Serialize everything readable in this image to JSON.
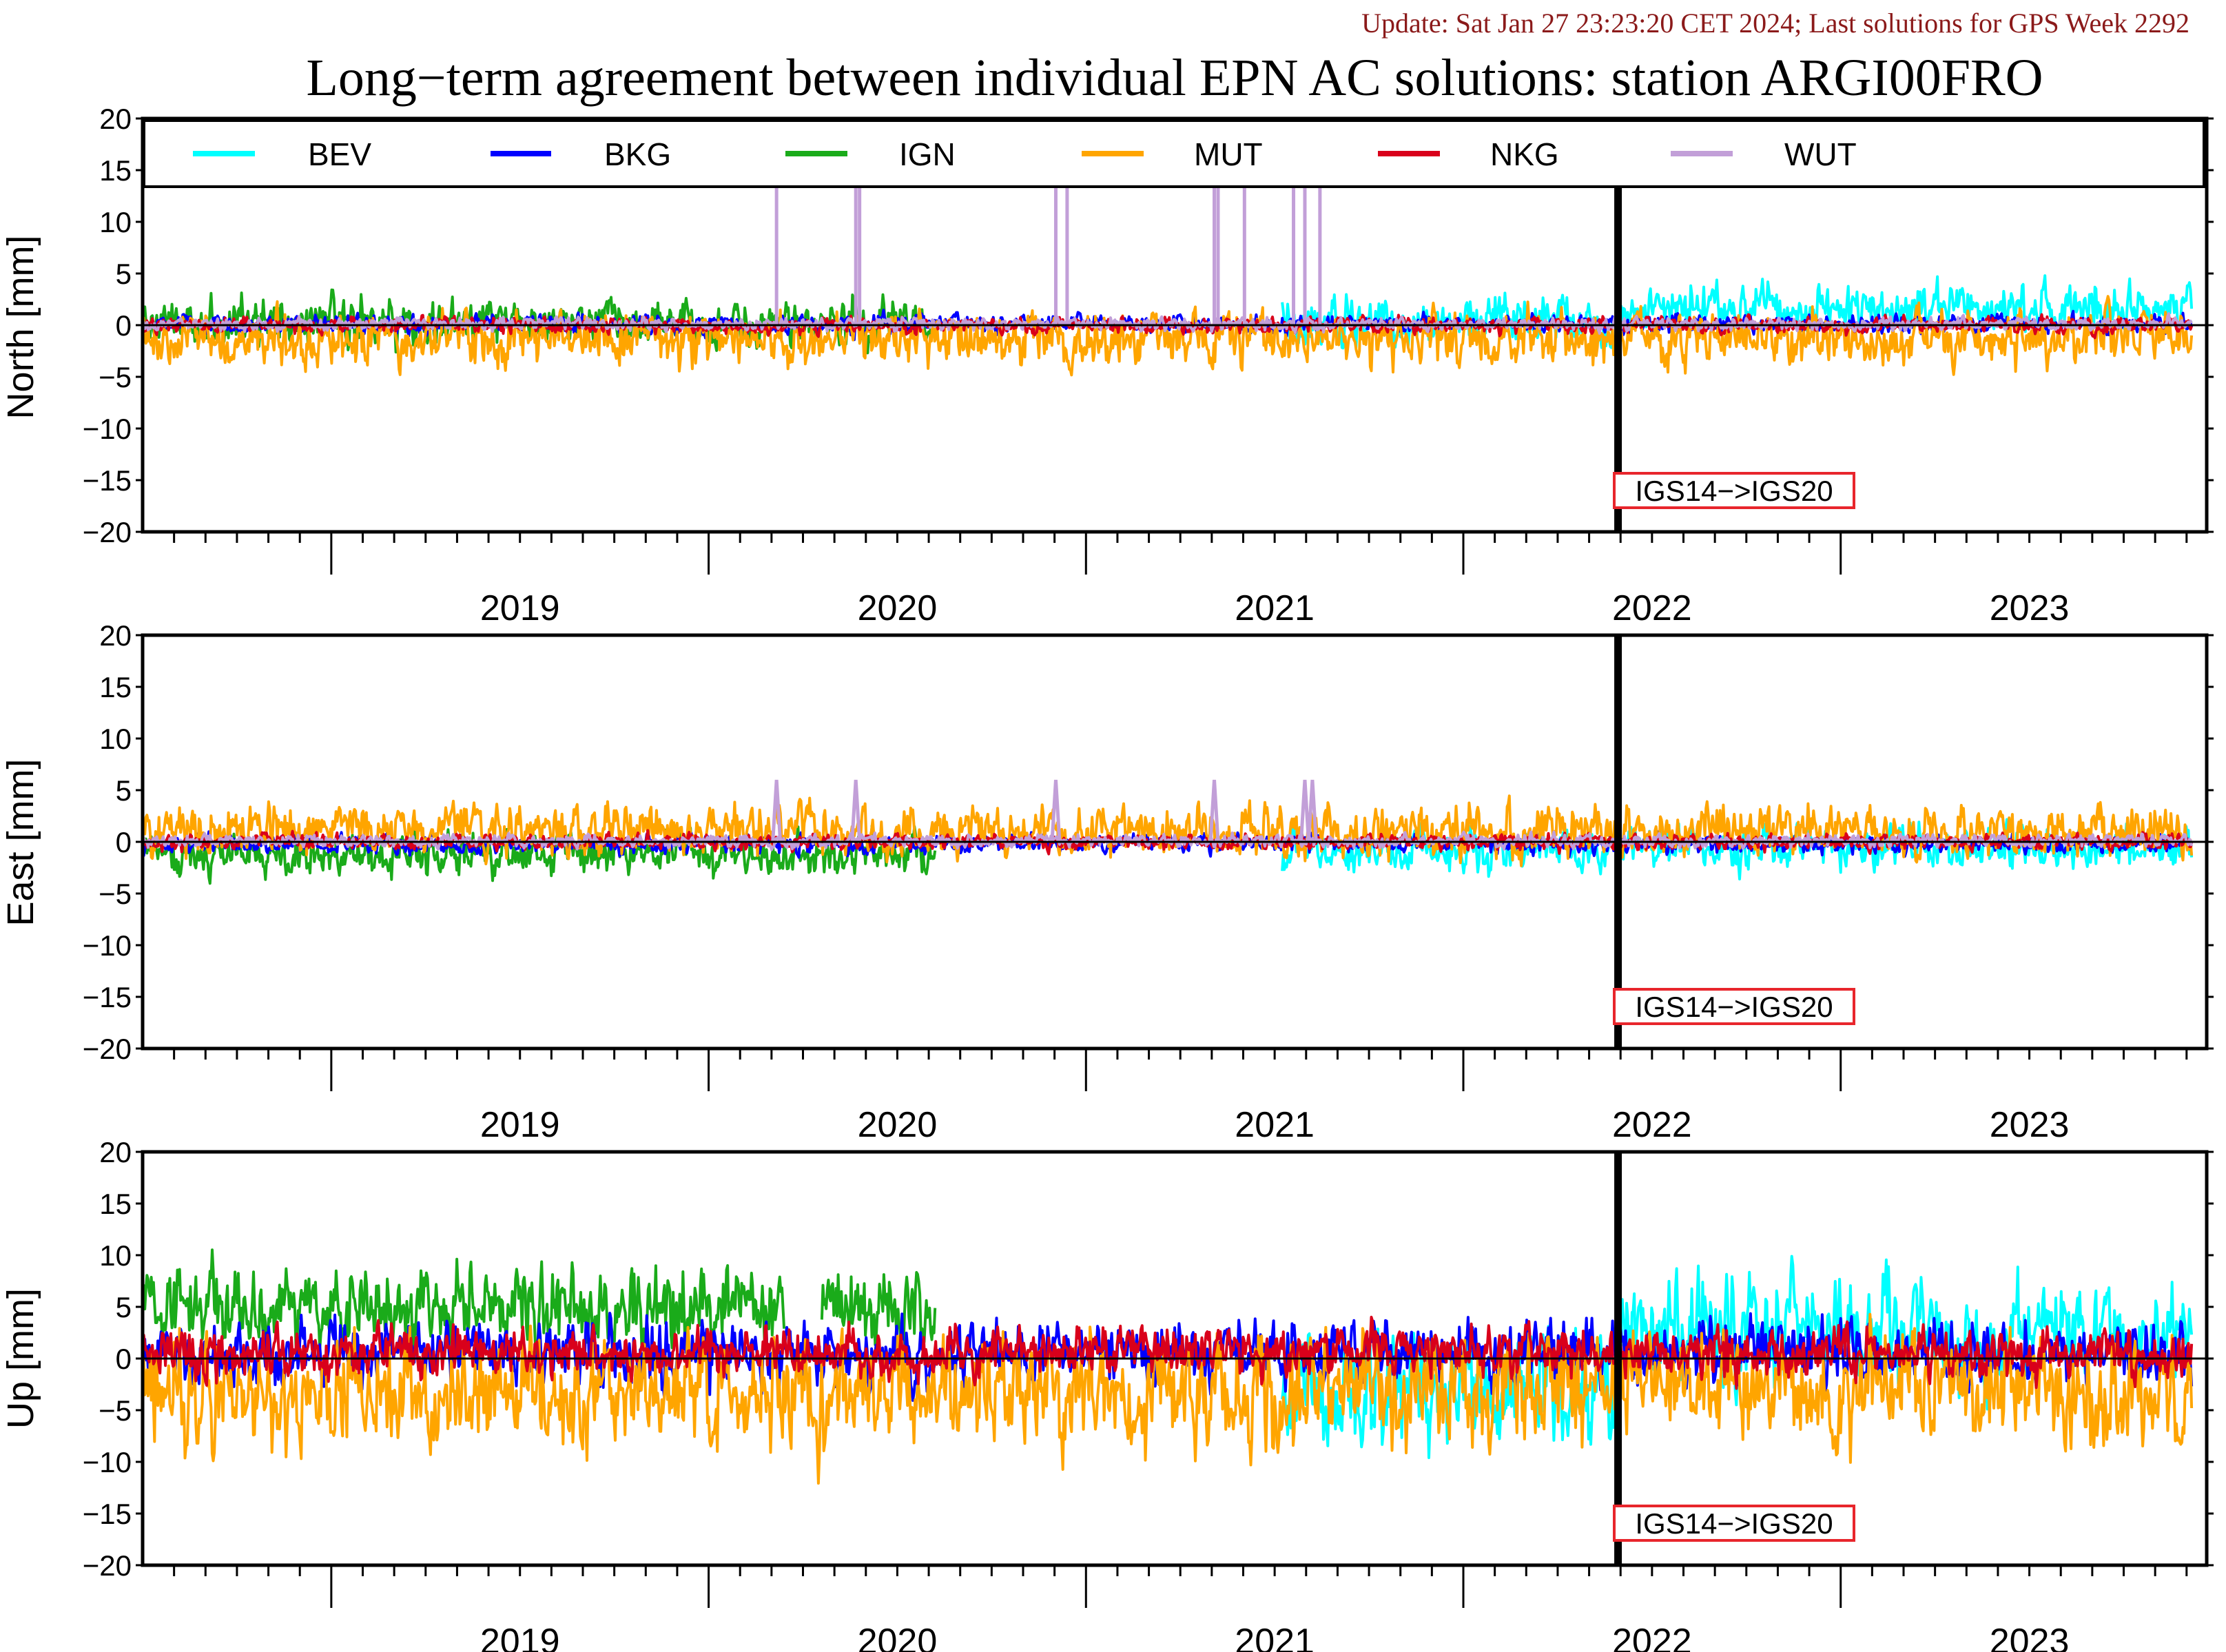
{
  "header": {
    "update": "Update: Sat Jan 27 23:23:20 CET 2024; Last solutions for GPS Week 2292",
    "title": "Long−term agreement between individual EPN AC solutions: station ARGI00FRO"
  },
  "colors": {
    "BEV": "#00ffff",
    "BKG": "#0000ff",
    "IGN": "#1aab1a",
    "MUT": "#ffa500",
    "NKG": "#d9001b",
    "WUT": "#c29fd8",
    "update_text": "#8b1a1a",
    "frame_box": "#e8262c"
  },
  "chart_data": [
    {
      "type": "line",
      "ylabel": "North [mm]",
      "ylim": [
        -20,
        20
      ],
      "yticks": [
        "20",
        "15",
        "10",
        "5",
        "0",
        "−5",
        "−10",
        "−15",
        "−20"
      ],
      "xlim": [
        2018.5,
        2023.97
      ],
      "xticks": [
        "2019",
        "2020",
        "2021",
        "2022",
        "2023"
      ],
      "legend": [
        "BEV",
        "BKG",
        "IGN",
        "MUT",
        "NKG",
        "WUT"
      ],
      "legend_position": "top",
      "reference_frame_change": {
        "x": 2022.41,
        "label": "IGS14−>IGS20"
      },
      "series": [
        {
          "name": "BEV",
          "ranges": [
            [
              2021.52,
              2023.93
            ]
          ],
          "amp": 1.6,
          "bias": 0.4,
          "late_bias": 1.5,
          "late_from": 2022.41
        },
        {
          "name": "BKG",
          "ranges": [
            [
              2018.5,
              2023.93
            ]
          ],
          "amp": 0.6,
          "bias": 0.1
        },
        {
          "name": "IGN",
          "ranges": [
            [
              2018.5,
              2020.6
            ]
          ],
          "amp": 1.6,
          "bias": 0.2
        },
        {
          "name": "MUT",
          "ranges": [
            [
              2018.5,
              2023.93
            ]
          ],
          "amp": 1.7,
          "bias": -1.3
        },
        {
          "name": "NKG",
          "ranges": [
            [
              2018.5,
              2023.93
            ]
          ],
          "amp": 0.5,
          "bias": 0.0
        },
        {
          "name": "WUT",
          "ranges": [
            [
              2018.5,
              2023.93
            ]
          ],
          "amp": 0.4,
          "bias": 0.1,
          "spikes": [
            2020.18,
            2020.39,
            2020.4,
            2020.92,
            2020.95,
            2021.34,
            2021.35,
            2021.42,
            2021.55,
            2021.58,
            2021.62
          ]
        }
      ]
    },
    {
      "type": "line",
      "ylabel": "East [mm]",
      "ylim": [
        -20,
        20
      ],
      "yticks": [
        "20",
        "15",
        "10",
        "5",
        "0",
        "−5",
        "−10",
        "−15",
        "−20"
      ],
      "xlim": [
        2018.5,
        2023.97
      ],
      "xticks": [
        "2019",
        "2020",
        "2021",
        "2022",
        "2023"
      ],
      "reference_frame_change": {
        "x": 2022.41,
        "label": "IGS14−>IGS20"
      },
      "series": [
        {
          "name": "BEV",
          "ranges": [
            [
              2021.52,
              2023.93
            ]
          ],
          "amp": 1.4,
          "bias": -0.6
        },
        {
          "name": "BKG",
          "ranges": [
            [
              2018.5,
              2023.93
            ]
          ],
          "amp": 0.6,
          "bias": -0.2
        },
        {
          "name": "IGN",
          "ranges": [
            [
              2018.5,
              2020.6
            ]
          ],
          "amp": 1.4,
          "bias": -1.2
        },
        {
          "name": "MUT",
          "ranges": [
            [
              2018.5,
              2023.93
            ]
          ],
          "amp": 1.6,
          "bias": 1.0
        },
        {
          "name": "NKG",
          "ranges": [
            [
              2018.5,
              2023.93
            ]
          ],
          "amp": 0.5,
          "bias": 0.0
        },
        {
          "name": "WUT",
          "ranges": [
            [
              2018.5,
              2023.93
            ]
          ],
          "amp": 0.4,
          "bias": 0.1,
          "spikes_small": [
            2020.18,
            2020.39,
            2020.92,
            2021.34,
            2021.58,
            2021.6
          ]
        }
      ]
    },
    {
      "type": "line",
      "ylabel": "Up [mm]",
      "ylim": [
        -20,
        20
      ],
      "yticks": [
        "20",
        "15",
        "10",
        "5",
        "0",
        "−5",
        "−10",
        "−15",
        "−20"
      ],
      "xlim": [
        2018.5,
        2023.97
      ],
      "xticks": [
        "2019",
        "2020",
        "2021",
        "2022",
        "2023"
      ],
      "reference_frame_change": {
        "x": 2022.41,
        "label": "IGS14−>IGS20"
      },
      "series": [
        {
          "name": "BEV",
          "ranges": [
            [
              2021.52,
              2023.93
            ]
          ],
          "amp": 3.5,
          "bias": -3.0,
          "late_bias": 2.5,
          "late_from": 2022.41
        },
        {
          "name": "BKG",
          "ranges": [
            [
              2018.5,
              2023.93
            ]
          ],
          "amp": 2.0,
          "bias": 0.5
        },
        {
          "name": "IGN",
          "ranges": [
            [
              2018.5,
              2020.2
            ],
            [
              2020.3,
              2020.6
            ]
          ],
          "amp": 2.5,
          "bias": 5.0
        },
        {
          "name": "MUT",
          "ranges": [
            [
              2018.5,
              2023.93
            ]
          ],
          "amp": 3.5,
          "bias": -3.0
        },
        {
          "name": "NKG",
          "ranges": [
            [
              2018.5,
              2023.93
            ]
          ],
          "amp": 1.6,
          "bias": 0.5
        }
      ]
    }
  ]
}
